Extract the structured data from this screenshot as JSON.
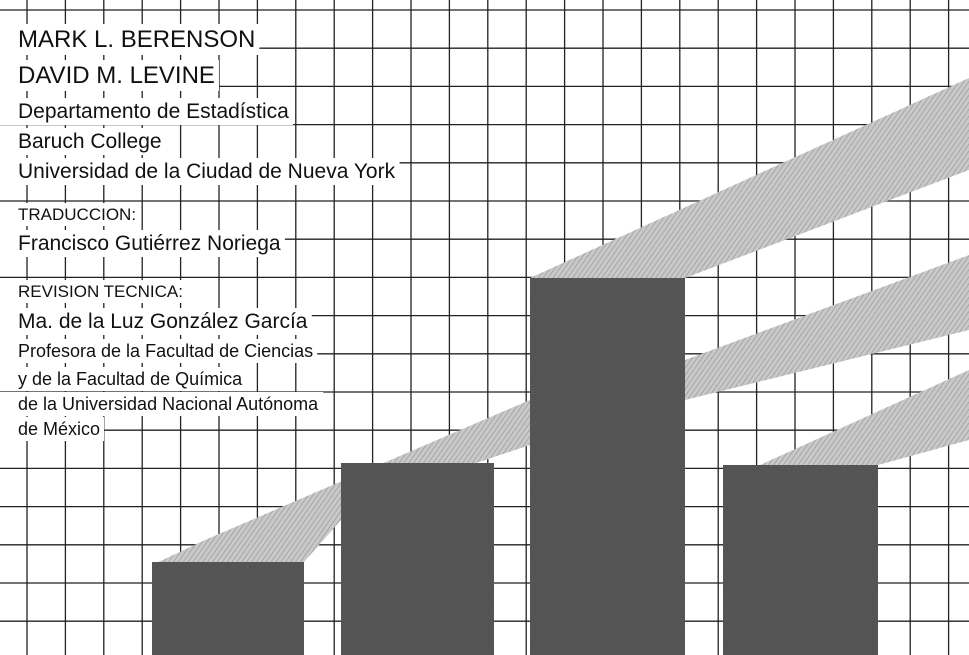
{
  "authors": [
    "MARK L. BERENSON",
    "DAVID M. LEVINE"
  ],
  "affiliation": [
    "Departamento de Estadística",
    "Baruch College",
    "Universidad de la Ciudad de Nueva York"
  ],
  "translation": {
    "label": "TRADUCCION:",
    "name": "Francisco Gutiérrez Noriega"
  },
  "technical_review": {
    "label": "REVISION TECNICA:",
    "name": "Ma. de la Luz González García",
    "affiliation": [
      "Profesora de la Facultad de Ciencias",
      "y de la Facultad de Química",
      "de la Universidad Nacional Autónoma",
      "de México"
    ]
  }
}
